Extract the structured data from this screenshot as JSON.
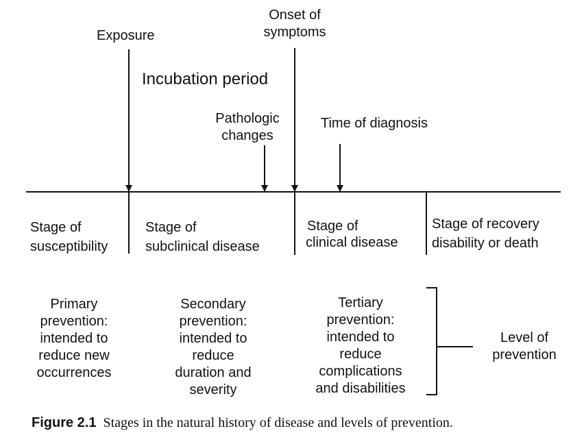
{
  "events": {
    "exposure": "Exposure",
    "onset": [
      "Onset of",
      "symptoms"
    ],
    "incubation": "Incubation period",
    "pathologic": [
      "Pathologic",
      "changes"
    ],
    "diagnosis": "Time of diagnosis"
  },
  "stages": [
    [
      "Stage of",
      "susceptibility"
    ],
    [
      "Stage of",
      "subclinical disease"
    ],
    [
      "Stage of",
      "clinical disease"
    ],
    [
      "Stage of recovery",
      "disability or death"
    ]
  ],
  "prevention": [
    [
      "Primary",
      "prevention:",
      "intended to",
      "reduce new",
      "occurrences"
    ],
    [
      "Secondary",
      "prevention:",
      "intended to",
      "reduce",
      "duration and",
      "severity"
    ],
    [
      "Tertiary",
      "prevention:",
      "intended to",
      "reduce",
      "complications",
      "and disabilities"
    ]
  ],
  "level": [
    "Level of",
    "prevention"
  ],
  "caption": {
    "number": "Figure 2.1",
    "text": "Stages in the natural history of disease and levels of prevention."
  },
  "colors": {
    "ink": "#111111",
    "background": "#ffffff"
  }
}
